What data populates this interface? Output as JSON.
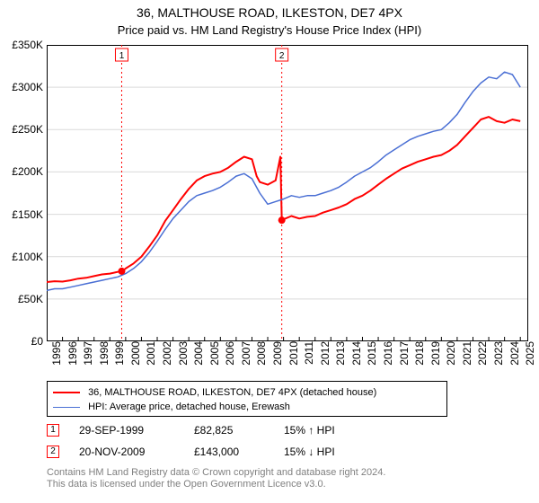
{
  "title": "36, MALTHOUSE ROAD, ILKESTON, DE7 4PX",
  "subtitle": "Price paid vs. HM Land Registry's House Price Index (HPI)",
  "chart": {
    "type": "line",
    "background_color": "#ffffff",
    "border_color": "#000000",
    "grid_color": "#d9d9d9",
    "x": {
      "min": 1995,
      "max": 2025.5,
      "tick_step": 1,
      "ticks": [
        1995,
        1996,
        1997,
        1998,
        1999,
        2000,
        2001,
        2002,
        2003,
        2004,
        2005,
        2006,
        2007,
        2008,
        2009,
        2010,
        2011,
        2012,
        2013,
        2014,
        2015,
        2016,
        2017,
        2018,
        2019,
        2020,
        2021,
        2022,
        2023,
        2024,
        2025
      ],
      "tick_rotation_deg": -90,
      "tick_fontsize": 12
    },
    "y": {
      "min": 0,
      "max": 350000,
      "tick_step": 50000,
      "tick_labels": [
        "£0",
        "£50K",
        "£100K",
        "£150K",
        "£200K",
        "£250K",
        "£300K",
        "£350K"
      ],
      "tick_fontsize": 12
    },
    "event_lines": [
      {
        "label": "1",
        "x": 1999.75,
        "color": "#ff0000",
        "line_color": "#ff0000",
        "dash": "2,3"
      },
      {
        "label": "2",
        "x": 2009.89,
        "color": "#ff0000",
        "line_color": "#ff0000",
        "dash": "2,3"
      }
    ],
    "event_markers": [
      {
        "x": 1999.75,
        "y": 82825,
        "color": "#ff0000"
      },
      {
        "x": 2009.89,
        "y": 143000,
        "color": "#ff0000"
      }
    ],
    "series": [
      {
        "name": "price_paid",
        "label": "36, MALTHOUSE ROAD, ILKESTON, DE7 4PX (detached house)",
        "color": "#ff0000",
        "line_width": 2,
        "data": [
          [
            1995.0,
            70000
          ],
          [
            1995.5,
            71000
          ],
          [
            1996.0,
            70500
          ],
          [
            1996.5,
            72000
          ],
          [
            1997.0,
            74000
          ],
          [
            1997.5,
            75000
          ],
          [
            1998.0,
            77000
          ],
          [
            1998.5,
            79000
          ],
          [
            1999.0,
            80000
          ],
          [
            1999.5,
            82000
          ],
          [
            1999.75,
            82825
          ],
          [
            2000.0,
            86000
          ],
          [
            2000.5,
            92000
          ],
          [
            2001.0,
            100000
          ],
          [
            2001.5,
            112000
          ],
          [
            2002.0,
            125000
          ],
          [
            2002.5,
            142000
          ],
          [
            2003.0,
            155000
          ],
          [
            2003.5,
            168000
          ],
          [
            2004.0,
            180000
          ],
          [
            2004.5,
            190000
          ],
          [
            2005.0,
            195000
          ],
          [
            2005.5,
            198000
          ],
          [
            2006.0,
            200000
          ],
          [
            2006.5,
            205000
          ],
          [
            2007.0,
            212000
          ],
          [
            2007.5,
            218000
          ],
          [
            2008.0,
            215000
          ],
          [
            2008.3,
            195000
          ],
          [
            2008.5,
            188000
          ],
          [
            2009.0,
            185000
          ],
          [
            2009.5,
            190000
          ],
          [
            2009.8,
            218000
          ],
          [
            2009.89,
            143000
          ],
          [
            2010.0,
            144000
          ],
          [
            2010.5,
            148000
          ],
          [
            2011.0,
            145000
          ],
          [
            2011.5,
            147000
          ],
          [
            2012.0,
            148000
          ],
          [
            2012.5,
            152000
          ],
          [
            2013.0,
            155000
          ],
          [
            2013.5,
            158000
          ],
          [
            2014.0,
            162000
          ],
          [
            2014.5,
            168000
          ],
          [
            2015.0,
            172000
          ],
          [
            2015.5,
            178000
          ],
          [
            2016.0,
            185000
          ],
          [
            2016.5,
            192000
          ],
          [
            2017.0,
            198000
          ],
          [
            2017.5,
            204000
          ],
          [
            2018.0,
            208000
          ],
          [
            2018.5,
            212000
          ],
          [
            2019.0,
            215000
          ],
          [
            2019.5,
            218000
          ],
          [
            2020.0,
            220000
          ],
          [
            2020.5,
            225000
          ],
          [
            2021.0,
            232000
          ],
          [
            2021.5,
            242000
          ],
          [
            2022.0,
            252000
          ],
          [
            2022.5,
            262000
          ],
          [
            2023.0,
            265000
          ],
          [
            2023.5,
            260000
          ],
          [
            2024.0,
            258000
          ],
          [
            2024.5,
            262000
          ],
          [
            2025.0,
            260000
          ]
        ]
      },
      {
        "name": "hpi",
        "label": "HPI: Average price, detached house, Erewash",
        "color": "#4a6fd4",
        "line_width": 1.5,
        "data": [
          [
            1995.0,
            60000
          ],
          [
            1995.5,
            62000
          ],
          [
            1996.0,
            62000
          ],
          [
            1996.5,
            64000
          ],
          [
            1997.0,
            66000
          ],
          [
            1997.5,
            68000
          ],
          [
            1998.0,
            70000
          ],
          [
            1998.5,
            72000
          ],
          [
            1999.0,
            74000
          ],
          [
            1999.5,
            76000
          ],
          [
            2000.0,
            80000
          ],
          [
            2000.5,
            86000
          ],
          [
            2001.0,
            94000
          ],
          [
            2001.5,
            105000
          ],
          [
            2002.0,
            118000
          ],
          [
            2002.5,
            132000
          ],
          [
            2003.0,
            145000
          ],
          [
            2003.5,
            155000
          ],
          [
            2004.0,
            165000
          ],
          [
            2004.5,
            172000
          ],
          [
            2005.0,
            175000
          ],
          [
            2005.5,
            178000
          ],
          [
            2006.0,
            182000
          ],
          [
            2006.5,
            188000
          ],
          [
            2007.0,
            195000
          ],
          [
            2007.5,
            198000
          ],
          [
            2008.0,
            192000
          ],
          [
            2008.5,
            175000
          ],
          [
            2009.0,
            162000
          ],
          [
            2009.5,
            165000
          ],
          [
            2010.0,
            168000
          ],
          [
            2010.5,
            172000
          ],
          [
            2011.0,
            170000
          ],
          [
            2011.5,
            172000
          ],
          [
            2012.0,
            172000
          ],
          [
            2012.5,
            175000
          ],
          [
            2013.0,
            178000
          ],
          [
            2013.5,
            182000
          ],
          [
            2014.0,
            188000
          ],
          [
            2014.5,
            195000
          ],
          [
            2015.0,
            200000
          ],
          [
            2015.5,
            205000
          ],
          [
            2016.0,
            212000
          ],
          [
            2016.5,
            220000
          ],
          [
            2017.0,
            226000
          ],
          [
            2017.5,
            232000
          ],
          [
            2018.0,
            238000
          ],
          [
            2018.5,
            242000
          ],
          [
            2019.0,
            245000
          ],
          [
            2019.5,
            248000
          ],
          [
            2020.0,
            250000
          ],
          [
            2020.5,
            258000
          ],
          [
            2021.0,
            268000
          ],
          [
            2021.5,
            282000
          ],
          [
            2022.0,
            295000
          ],
          [
            2022.5,
            305000
          ],
          [
            2023.0,
            312000
          ],
          [
            2023.5,
            310000
          ],
          [
            2024.0,
            318000
          ],
          [
            2024.5,
            315000
          ],
          [
            2025.0,
            300000
          ]
        ]
      }
    ]
  },
  "legend": {
    "border_color": "#000000",
    "items": [
      {
        "series": "price_paid"
      },
      {
        "series": "hpi"
      }
    ]
  },
  "events_table": [
    {
      "marker": "1",
      "date": "29-SEP-1999",
      "price": "£82,825",
      "delta": "15% ↑ HPI"
    },
    {
      "marker": "2",
      "date": "20-NOV-2009",
      "price": "£143,000",
      "delta": "15% ↓ HPI"
    }
  ],
  "footnote_line1": "Contains HM Land Registry data © Crown copyright and database right 2024.",
  "footnote_line2": "This data is licensed under the Open Government Licence v3.0.",
  "marker_border_color": "#ff0000",
  "footnote_color": "#808080"
}
